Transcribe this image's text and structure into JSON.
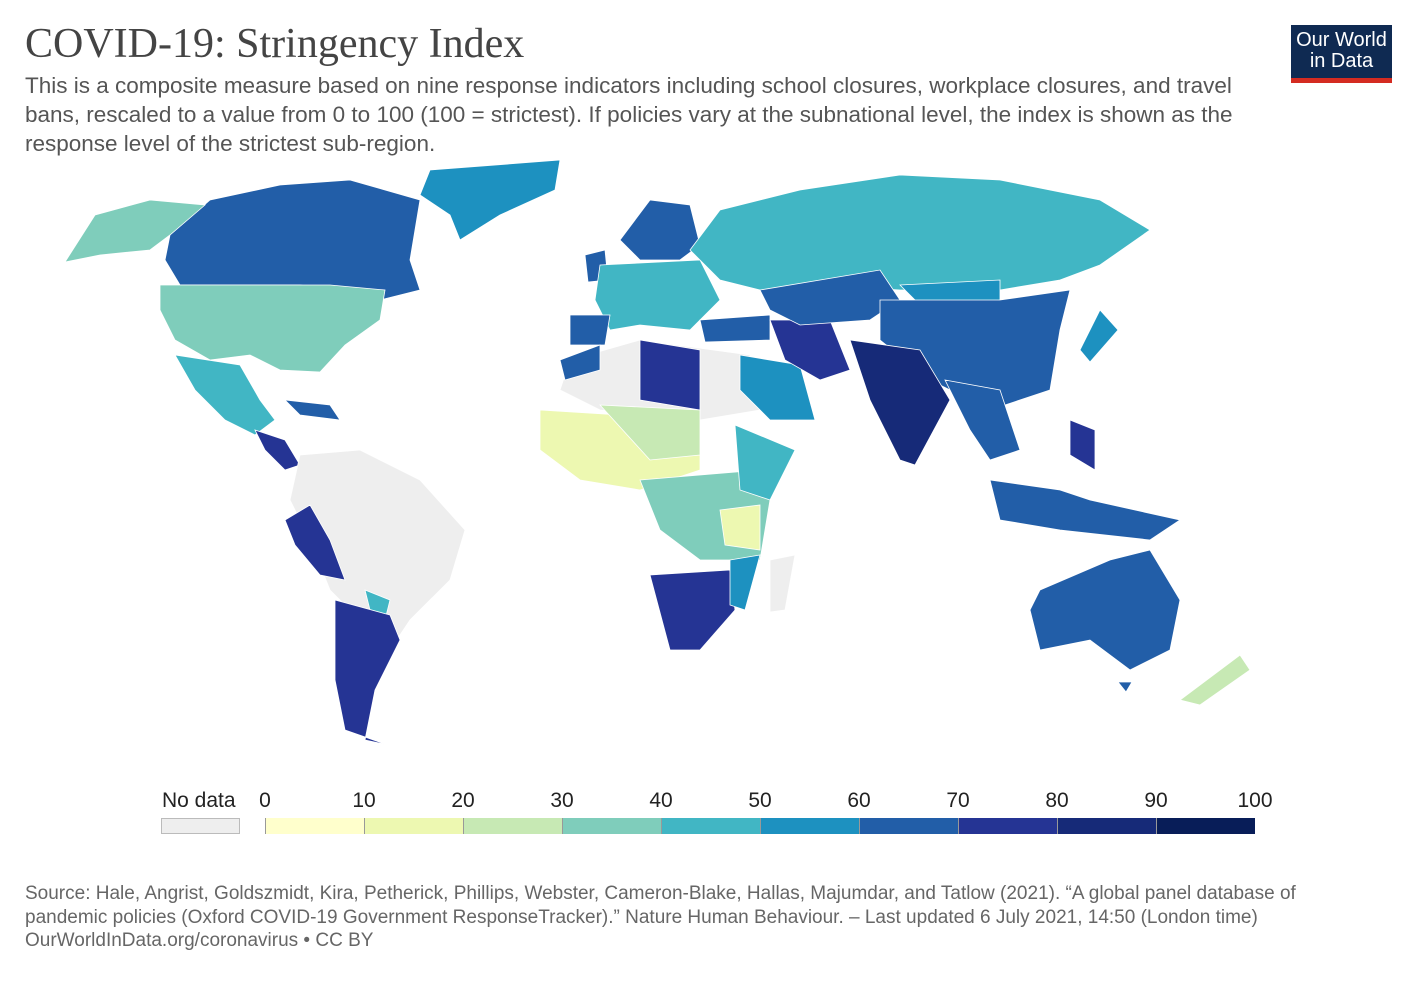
{
  "header": {
    "title": "COVID-19: Stringency Index",
    "subtitle": "This is a composite measure based on nine response indicators including school closures, workplace closures, and travel bans, rescaled to a value from 0 to 100 (100 = strictest). If policies vary at the subnational level, the index is shown as the response level of the strictest sub-region.",
    "logo": "Our World in Data"
  },
  "legend": {
    "no_data_label": "No data",
    "no_data_color": "#eeeeee",
    "ticks": [
      "0",
      "10",
      "20",
      "30",
      "40",
      "50",
      "60",
      "70",
      "80",
      "90",
      "100"
    ],
    "colors": [
      "#ffffcc",
      "#edf8b1",
      "#c7e9b4",
      "#7fcdbb",
      "#41b6c4",
      "#1d91c0",
      "#225ea8",
      "#253494",
      "#162a78",
      "#081d58"
    ]
  },
  "footer": {
    "source": "Source: Hale, Angrist, Goldszmidt, Kira, Petherick, Phillips, Webster, Cameron-Blake, Hallas, Majumdar, and Tatlow (2021). “A global panel database of pandemic policies (Oxford COVID-19 Government ResponseTracker).” Nature Human Behaviour. – Last updated 6 July 2021, 14:50 (London time)",
    "link": "OurWorldInData.org/coronavirus • CC BY"
  }
}
